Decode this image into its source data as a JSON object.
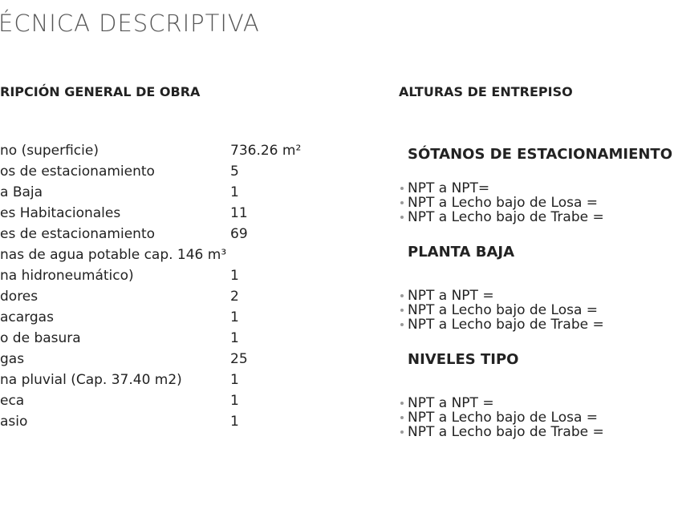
{
  "header": {
    "title": "ÉCNICA DESCRIPTIVA"
  },
  "left": {
    "heading": "RIPCIÓN GENERAL DE OBRA",
    "rows": [
      [
        "no (superficie)",
        "736.26 m²"
      ],
      [
        "os de estacionamiento",
        "5"
      ],
      [
        "a Baja",
        "1"
      ],
      [
        "es Habitacionales",
        "11"
      ],
      [
        "es de estacionamiento",
        "69"
      ],
      [
        "nas de agua potable cap. 146 m³"
      ],
      [
        "na hidroneumático)",
        "1"
      ],
      [
        "dores",
        "2"
      ],
      [
        "acargas",
        "1"
      ],
      [
        "o de basura",
        "1"
      ],
      [
        "gas",
        "25"
      ],
      [
        "na pluvial (Cap. 37.40 m2)",
        "1"
      ],
      [
        "eca",
        "1"
      ],
      [
        "asio",
        "1"
      ]
    ]
  },
  "right": {
    "heading": "ALTURAS DE ENTREPISO",
    "sections": [
      {
        "title": "SÓTANOS DE ESTACIONAMIENTO",
        "items": [
          "NPT a NPT=",
          "NPT a Lecho bajo de Losa =",
          "NPT a Lecho bajo de Trabe ="
        ]
      },
      {
        "title": "PLANTA BAJA",
        "items": [
          "NPT a NPT =",
          "NPT a Lecho bajo de Losa =",
          "NPT a Lecho bajo de Trabe ="
        ]
      },
      {
        "title": "NIVELES TIPO",
        "items": [
          "NPT a NPT =",
          "NPT a Lecho bajo de Losa =",
          "NPT a Lecho bajo de Trabe ="
        ]
      }
    ]
  }
}
